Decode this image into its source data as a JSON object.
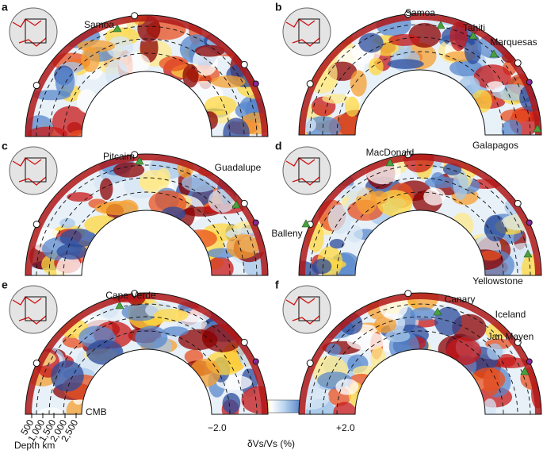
{
  "panels": [
    {
      "letter": "a",
      "hotspots": [
        "Samoa"
      ]
    },
    {
      "letter": "b",
      "hotspots": [
        "Samoa",
        "Tahiti",
        "Marquesas",
        "Galapagos"
      ]
    },
    {
      "letter": "c",
      "hotspots": [
        "Pitcairn",
        "Guadalupe"
      ]
    },
    {
      "letter": "d",
      "hotspots": [
        "MacDonald",
        "Balleny",
        "Yellowstone"
      ]
    },
    {
      "letter": "e",
      "hotspots": [
        "Cape Verde"
      ]
    },
    {
      "letter": "f",
      "hotspots": [
        "Canary",
        "Iceland",
        "Jan Mayen"
      ]
    }
  ],
  "depth_scale": {
    "ticks": [
      "500",
      "1,000",
      "1,500",
      "2,000",
      "2,500"
    ],
    "label": "Depth km",
    "cmb": "CMB"
  },
  "colorbar": {
    "min_label": "−2.0",
    "max_label": "+2.0",
    "title": "δVs/Vs (%)"
  }
}
